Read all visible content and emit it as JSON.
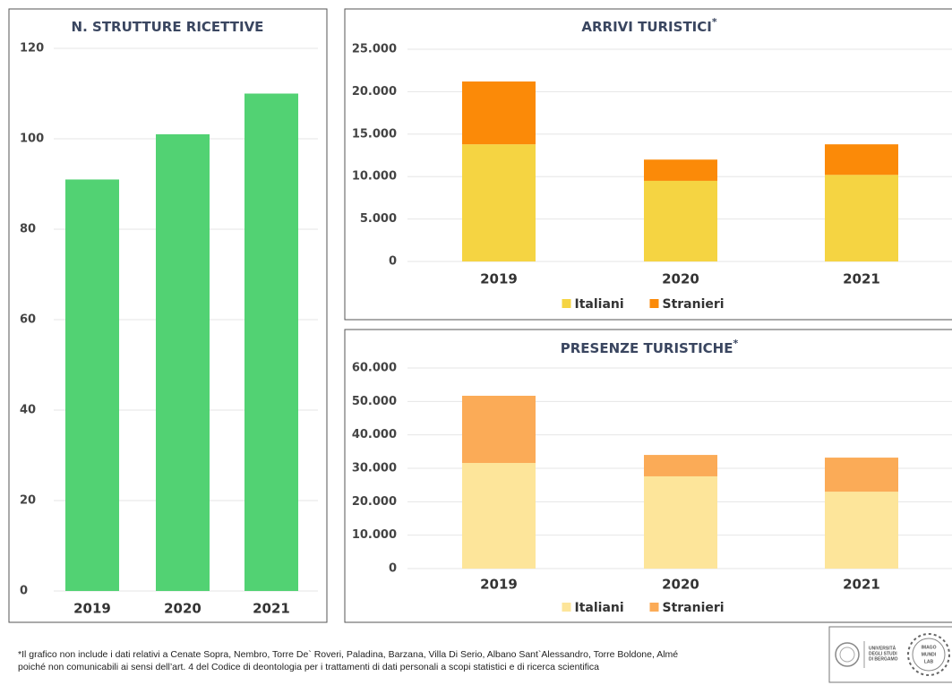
{
  "chart_data": [
    {
      "type": "bar",
      "title": "N. STRUTTURE RICETTIVE",
      "categories": [
        "2019",
        "2020",
        "2021"
      ],
      "values": [
        91,
        101,
        110
      ],
      "color": "#52d273",
      "ylim": [
        0,
        120
      ],
      "yticks": [
        0,
        20,
        40,
        60,
        80,
        100,
        120
      ],
      "grid": true
    },
    {
      "type": "stacked_bar",
      "title": "ARRIVI TURISTICI",
      "title_suffix": "*",
      "categories": [
        "2019",
        "2020",
        "2021"
      ],
      "series": [
        {
          "name": "Italiani",
          "color": "#f5d442",
          "values": [
            13800,
            9500,
            10200
          ]
        },
        {
          "name": "Stranieri",
          "color": "#fb8a08",
          "values": [
            7400,
            2500,
            3600
          ]
        }
      ],
      "ylim": [
        0,
        25000
      ],
      "yticks": [
        0,
        {
          "value": 5000,
          "label": "5.000"
        },
        {
          "value": 10000,
          "label": "10.000"
        },
        {
          "value": 15000,
          "label": "15.000"
        },
        {
          "value": 20000,
          "label": "20.000"
        },
        {
          "value": 25000,
          "label": "25.000"
        }
      ],
      "grid": true,
      "legend": "bottom"
    },
    {
      "type": "stacked_bar",
      "title": "PRESENZE TURISTICHE",
      "title_suffix": "*",
      "categories": [
        "2019",
        "2020",
        "2021"
      ],
      "series": [
        {
          "name": "Italiani",
          "color": "#fde59a",
          "values": [
            31600,
            27600,
            23000
          ]
        },
        {
          "name": "Stranieri",
          "color": "#fbab57",
          "values": [
            20100,
            6400,
            10200
          ]
        }
      ],
      "ylim": [
        0,
        60000
      ],
      "yticks": [
        0,
        {
          "value": 10000,
          "label": "10.000"
        },
        {
          "value": 20000,
          "label": "20.000"
        },
        {
          "value": 30000,
          "label": "30.000"
        },
        {
          "value": 40000,
          "label": "40.000"
        },
        {
          "value": 50000,
          "label": "50.000"
        },
        {
          "value": 60000,
          "label": "60.000"
        }
      ],
      "grid": true,
      "legend": "bottom"
    }
  ],
  "footnote": [
    "*Il grafico non include i dati relativi a Cenate Sopra, Nembro, Torre De` Roveri, Paladina, Barzana, Villa Di Serio, Albano Sant`Alessandro, Torre Boldone, Almé",
    "poiché non comunicabili ai sensi dell’art. 4 del Codice di deontologia per i trattamenti di dati personali a scopi statistici e di ricerca scientifica"
  ],
  "logos": {
    "university": [
      "UNIVERSITÀ",
      "DEGLI STUDI",
      "DI BERGAMO"
    ],
    "lab": [
      "IMAGO",
      "MUNDI",
      "LAB"
    ]
  }
}
